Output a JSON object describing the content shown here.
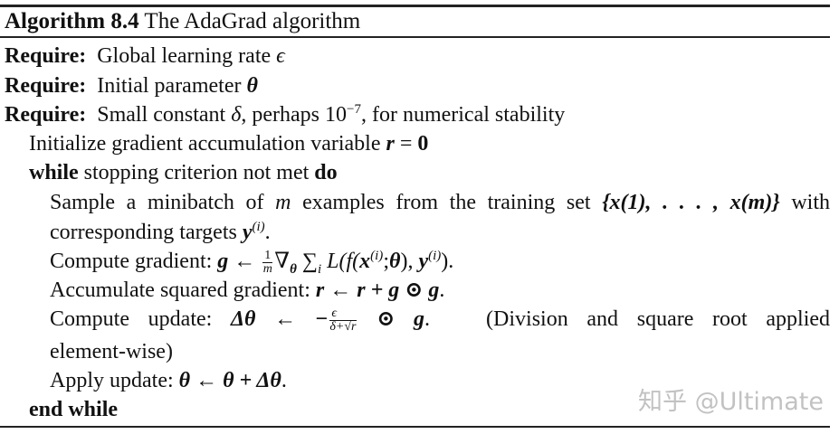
{
  "title": {
    "label": "Algorithm 8.4",
    "name": "The AdaGrad algorithm"
  },
  "lines": [
    {
      "kw": "Require:",
      "text": "Global learning rate ",
      "math": "ϵ"
    },
    {
      "kw": "Require:",
      "text": "Initial parameter ",
      "math": "θ"
    },
    {
      "kw": "Require:",
      "text": "Small constant ",
      "math": "δ",
      "text2": ", perhaps ",
      "base": "10",
      "sup": "−7",
      "text3": ", for numerical stability"
    },
    {
      "text": "Initialize gradient accumulation variable ",
      "math": "r",
      "eq": " = ",
      "zero": "0"
    },
    {
      "kw": "while",
      "text": " stopping criterion not met ",
      "kw2": "do"
    },
    {
      "text": "Sample a minibatch of ",
      "m": "m",
      "text2": " examples from the training set ",
      "set": "{x(1), . . . , x(m)}",
      "text3": " with"
    },
    {
      "text": "corresponding targets ",
      "y": "y",
      "sup": "(i)",
      "end": "."
    },
    {
      "text": "Compute gradient: ",
      "g": "g",
      "arrow": " ← ",
      "num": "1",
      "den": "m",
      "grad": "∇",
      "theta": "θ",
      "sum": " ∑",
      "i": "i",
      "L": " L(f(",
      "x": "x",
      "semi": ";",
      "paren": "), ",
      "y": "y",
      "close": ")",
      "end": "."
    },
    {
      "text": "Accumulate squared gradient: ",
      "expr": "r ← r + g ⊙ g",
      "end": "."
    },
    {
      "text": "Compute update: ",
      "lhs": "Δθ ← −",
      "num": "ϵ",
      "den": "δ+√r",
      "rhs": " ⊙ g",
      "end": ".",
      "note": "(Division and square root applied"
    },
    {
      "text": "element-wise)"
    },
    {
      "text": "Apply update: ",
      "expr": "θ ← θ + Δθ",
      "end": "."
    },
    {
      "kw": "end while"
    }
  ],
  "watermark": "知乎 @Ultimate"
}
